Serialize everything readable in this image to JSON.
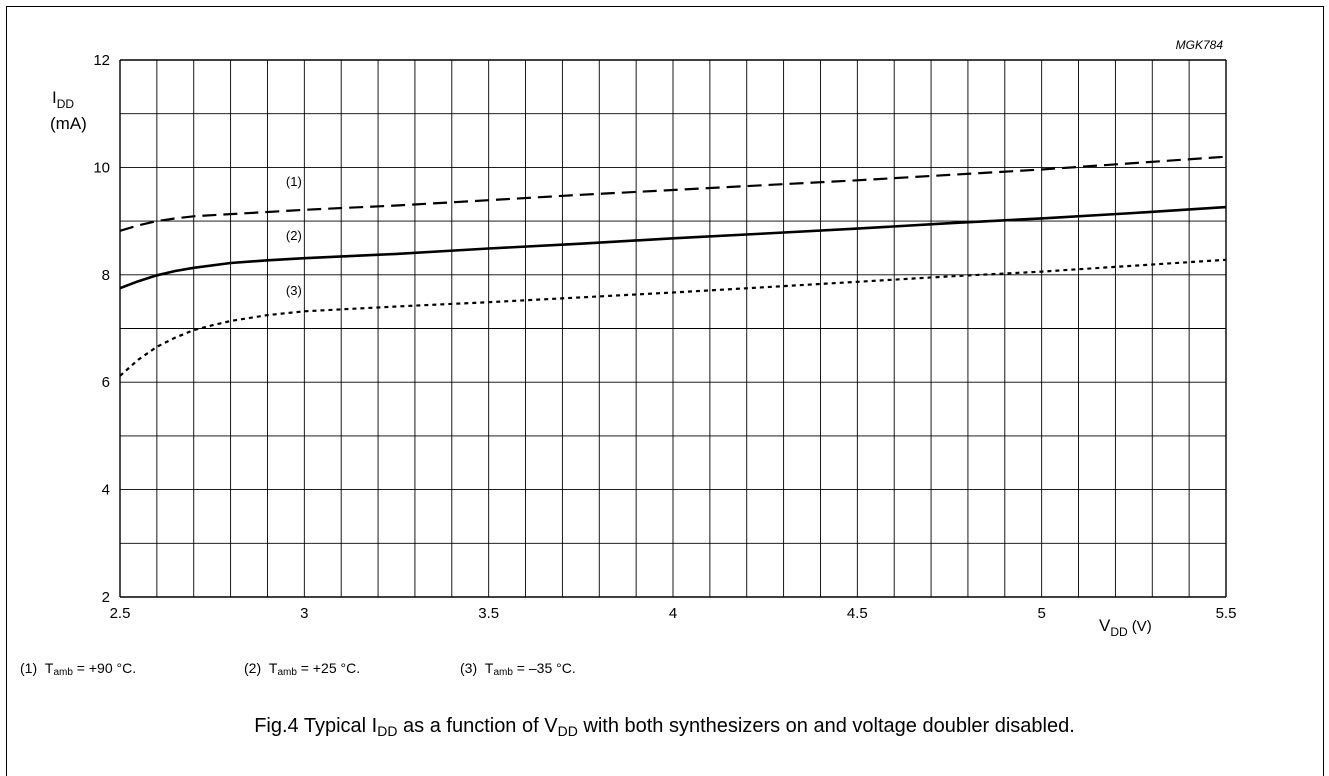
{
  "figure_code": "MGK784",
  "chart_data": {
    "type": "line",
    "y_label": {
      "main": "I",
      "sub": "DD",
      "unit": "(mA)"
    },
    "x_label": {
      "main": "V",
      "sub": "DD",
      "unit": "(V)"
    },
    "xlim": [
      2.5,
      5.5
    ],
    "ylim": [
      2,
      12
    ],
    "x_ticks": [
      "2.5",
      "3",
      "3.5",
      "4",
      "4.5",
      "5",
      "5.5"
    ],
    "y_ticks": [
      "2",
      "4",
      "6",
      "8",
      "10",
      "12"
    ],
    "x_minor_step": 0.1,
    "y_minor_step": 1,
    "grid": true,
    "series": [
      {
        "label": "(1)",
        "style": "dashed",
        "label_at": [
          2.95,
          9.65
        ],
        "x": [
          2.5,
          2.55,
          2.6,
          2.65,
          2.7,
          2.8,
          2.9,
          3.0,
          3.25,
          3.5,
          3.75,
          4.0,
          4.25,
          4.5,
          4.75,
          5.0,
          5.25,
          5.5
        ],
        "y": [
          8.82,
          8.92,
          9.0,
          9.05,
          9.09,
          9.13,
          9.17,
          9.21,
          9.29,
          9.39,
          9.49,
          9.58,
          9.67,
          9.76,
          9.86,
          9.96,
          10.08,
          10.2
        ]
      },
      {
        "label": "(2)",
        "style": "solid",
        "label_at": [
          2.95,
          8.65
        ],
        "x": [
          2.5,
          2.55,
          2.6,
          2.65,
          2.7,
          2.8,
          2.9,
          3.0,
          3.25,
          3.5,
          3.75,
          4.0,
          4.25,
          4.5,
          4.75,
          5.0,
          5.25,
          5.5
        ],
        "y": [
          7.75,
          7.88,
          7.99,
          8.07,
          8.13,
          8.22,
          8.27,
          8.31,
          8.39,
          8.49,
          8.58,
          8.68,
          8.77,
          8.86,
          8.96,
          9.05,
          9.15,
          9.26
        ]
      },
      {
        "label": "(3)",
        "style": "dotted",
        "label_at": [
          2.95,
          7.62
        ],
        "x": [
          2.5,
          2.55,
          2.6,
          2.65,
          2.7,
          2.75,
          2.8,
          2.9,
          3.0,
          3.25,
          3.5,
          3.75,
          4.0,
          4.25,
          4.5,
          4.75,
          5.0,
          5.25,
          5.5
        ],
        "y": [
          6.12,
          6.42,
          6.66,
          6.83,
          6.97,
          7.06,
          7.14,
          7.25,
          7.32,
          7.41,
          7.49,
          7.58,
          7.67,
          7.77,
          7.87,
          7.97,
          8.06,
          8.17,
          8.28
        ]
      }
    ]
  },
  "legend": [
    {
      "num": "(1)",
      "sym": "T",
      "sub": "amb",
      "value": " = +90 °C."
    },
    {
      "num": "(2)",
      "sym": "T",
      "sub": "amb",
      "value": " = +25 °C."
    },
    {
      "num": "(3)",
      "sym": "T",
      "sub": "amb",
      "value": " = –35 °C."
    }
  ],
  "caption": {
    "part1": "Fig.4  Typical I",
    "sub1": "DD",
    "part2": " as a function of V",
    "sub2": "DD",
    "part3": " with both synthesizers on and voltage doubler disabled."
  }
}
